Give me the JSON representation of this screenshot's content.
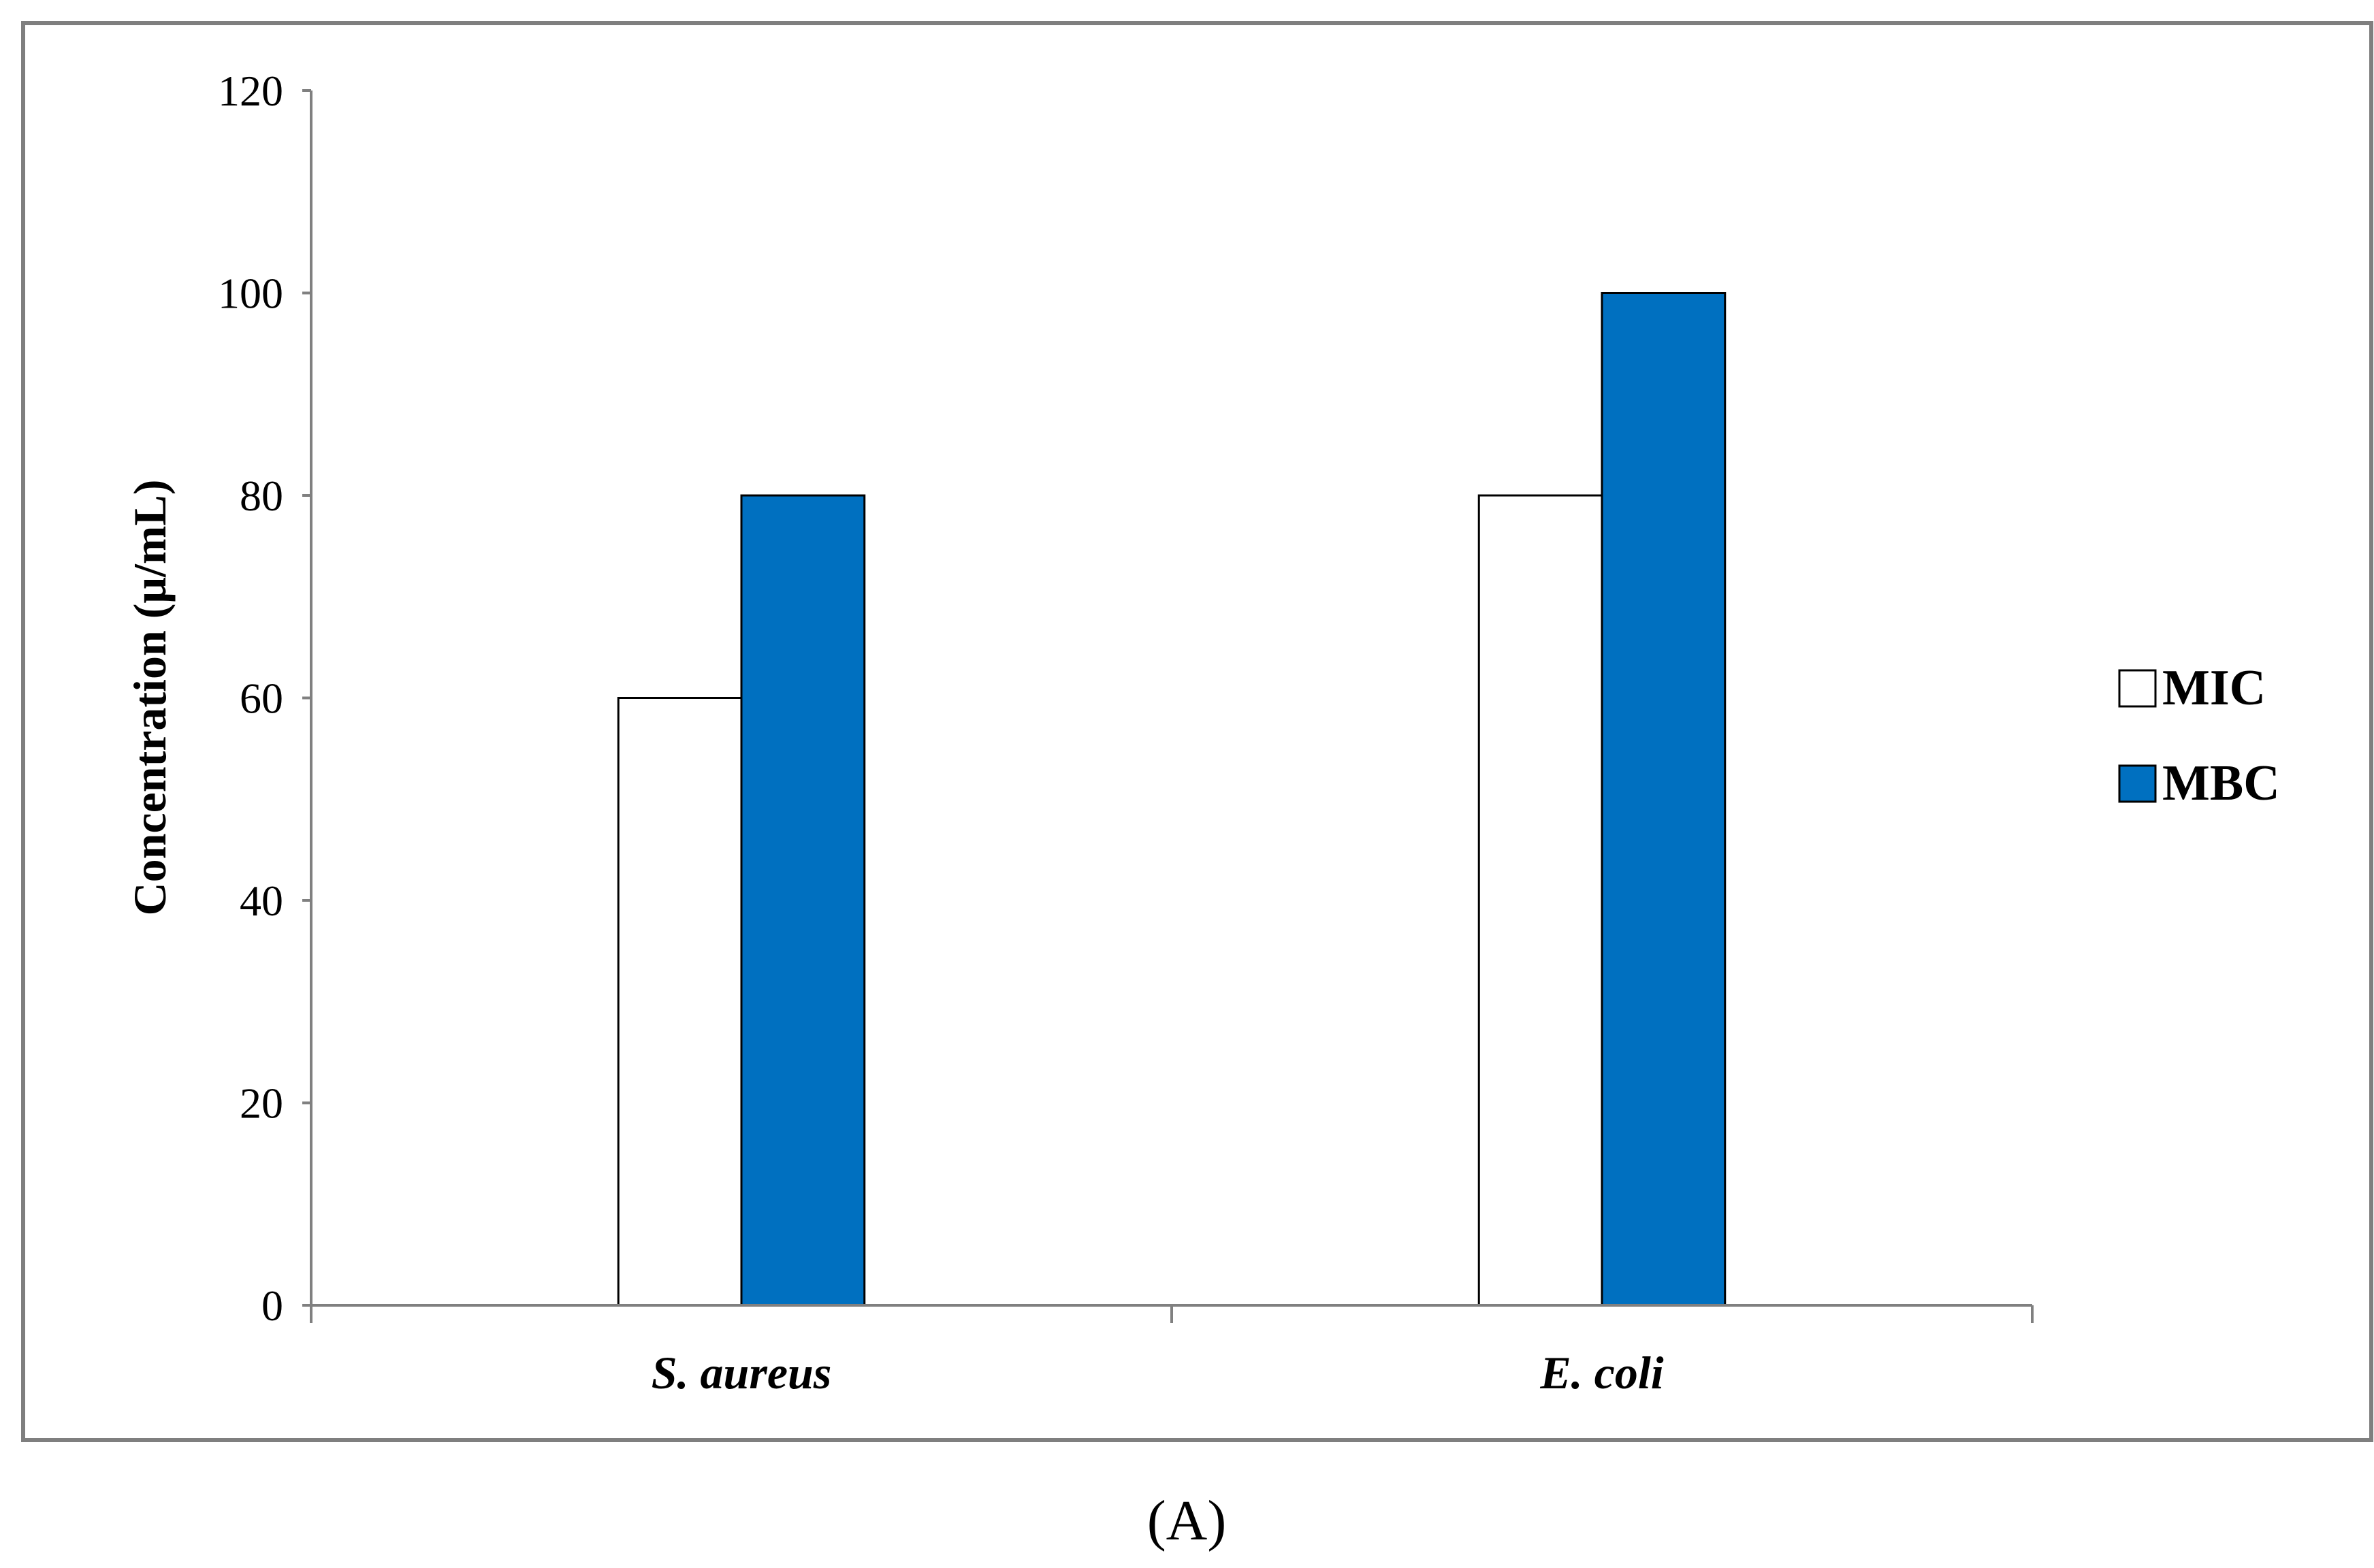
{
  "chart_data": {
    "type": "bar",
    "categories": [
      "S. aureus",
      "E. coli"
    ],
    "series": [
      {
        "name": "MIC",
        "values": [
          60,
          80
        ],
        "color": "#ffffff"
      },
      {
        "name": "MBC",
        "values": [
          80,
          100
        ],
        "color": "#0070c0"
      }
    ],
    "xlabel": "",
    "ylabel": "Concentration (μ/mL)",
    "ylim": [
      0,
      120
    ],
    "yticks": [
      0,
      20,
      40,
      60,
      80,
      100,
      120
    ],
    "ytick_labels": [
      "0",
      "20",
      "40",
      "60",
      "80",
      "100",
      "120"
    ],
    "grid": false,
    "legend_position": "right"
  },
  "panel_label": "(A)",
  "colors": {
    "frame": "#7f7f7f",
    "axis": "#808080",
    "bar_outline": "#000000"
  }
}
